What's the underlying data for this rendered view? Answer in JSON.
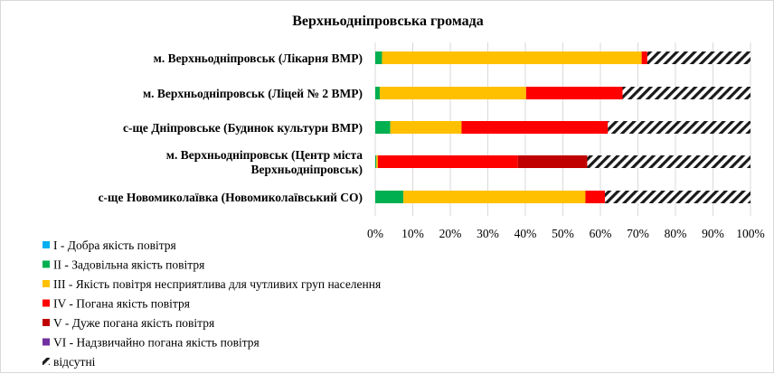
{
  "chart_data": {
    "type": "bar",
    "orientation": "horizontal",
    "stacked": "percent",
    "title": "Верхньодніпровська громада",
    "categories": [
      [
        "м. Верхньодніпровськ (Лікарня ВМР)"
      ],
      [
        "м. Верхньодніпровськ (Ліцей № 2 ВМР)"
      ],
      [
        "с-ще Дніпровське (Будинок культури ВМР)"
      ],
      [
        "м. Верхньодніпровськ (Центр міста",
        "Верхньодніпровськ)"
      ],
      [
        "с-ще Новомиколаївка (Новомиколаївський СО)"
      ]
    ],
    "xlim": [
      0,
      100
    ],
    "x_ticks": [
      "0%",
      "10%",
      "20%",
      "30%",
      "40%",
      "50%",
      "60%",
      "70%",
      "80%",
      "90%",
      "100%"
    ],
    "grid": true,
    "legend_position": "bottom-left",
    "series": [
      {
        "name": "I - Добра якість  повітря",
        "color": "#00B0F0",
        "pattern": "solid",
        "values": [
          0,
          0,
          0,
          0,
          0
        ]
      },
      {
        "name": "II - Задовільна якість  повітря",
        "color": "#00B050",
        "pattern": "solid",
        "values": [
          1.8,
          1.2,
          4,
          0.3,
          7.5
        ]
      },
      {
        "name": "III - Якість повітря несприятлива для чутливих груп населення",
        "color": "#FFC000",
        "pattern": "solid",
        "values": [
          69.2,
          39,
          19,
          0.4,
          48.5
        ]
      },
      {
        "name": "IV - Погана якість  повітря",
        "color": "#FF0000",
        "pattern": "solid",
        "values": [
          1.5,
          25.7,
          39,
          37.3,
          5.2
        ]
      },
      {
        "name": "V - Дуже погана якість  повітря",
        "color": "#C00000",
        "pattern": "solid",
        "values": [
          0,
          0,
          0,
          18.5,
          0
        ]
      },
      {
        "name": "VI - Надзвичайно погана якість  повітря",
        "color": "#7030A0",
        "pattern": "solid",
        "values": [
          0,
          0,
          0,
          0,
          0
        ]
      },
      {
        "name": "відсутні",
        "color": "#000000",
        "pattern": "hatch",
        "values": [
          27.5,
          34.1,
          38,
          43.5,
          38.8
        ]
      }
    ]
  }
}
